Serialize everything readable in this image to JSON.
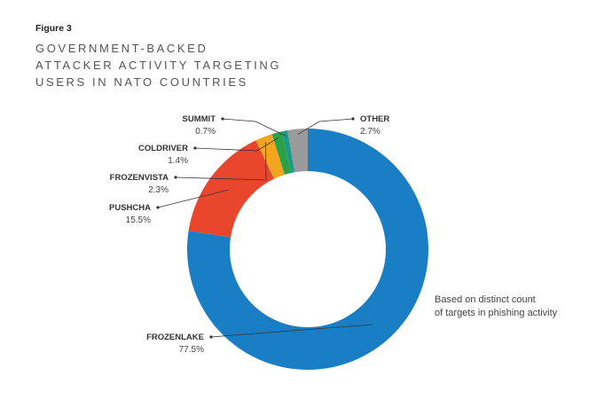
{
  "figure_label": "Figure 3",
  "title_lines": [
    "GOVERNMENT-BACKED",
    "ATTACKER ACTIVITY TARGETING",
    "USERS IN NATO COUNTRIES"
  ],
  "note_lines": [
    "Based on distinct count",
    "of targets in phishing activity"
  ],
  "chart_data": {
    "type": "pie",
    "title": "GOVERNMENT-BACKED ATTACKER ACTIVITY TARGETING USERS IN NATO COUNTRIES",
    "donut": true,
    "legend": "callout-labels",
    "slices": [
      {
        "name": "FROZENLAKE",
        "value": 77.5,
        "label": "77.5%",
        "color": "#1a7ec5"
      },
      {
        "name": "PUSHCHA",
        "value": 15.5,
        "label": "15.5%",
        "color": "#e8472d"
      },
      {
        "name": "FROZENVISTA",
        "value": 2.3,
        "label": "2.3%",
        "color": "#f4a520"
      },
      {
        "name": "COLDRIVER",
        "value": 1.4,
        "label": "1.4%",
        "color": "#2ba14a"
      },
      {
        "name": "SUMMIT",
        "value": 0.7,
        "label": "0.7%",
        "color": "#1a9a8a"
      },
      {
        "name": "OTHER",
        "value": 2.7,
        "label": "2.7%",
        "color": "#9a9a9a"
      }
    ]
  }
}
